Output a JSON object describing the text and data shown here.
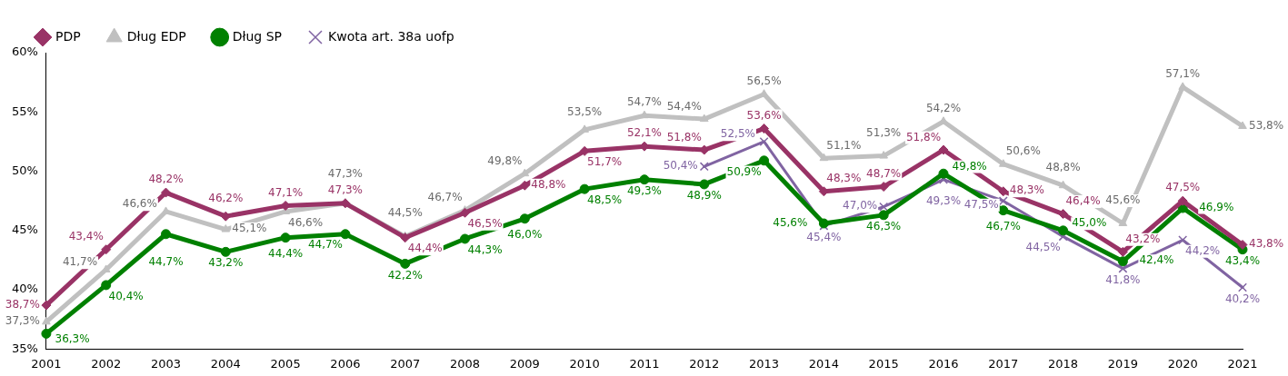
{
  "chart_data": {
    "type": "line",
    "categories": [
      "2001",
      "2002",
      "2003",
      "2004",
      "2005",
      "2006",
      "2007",
      "2008",
      "2009",
      "2010",
      "2011",
      "2012",
      "2013",
      "2014",
      "2015",
      "2016",
      "2017",
      "2018",
      "2019",
      "2020",
      "2021"
    ],
    "ylim": [
      35,
      60
    ],
    "yticks": [
      {
        "value": 35,
        "label": "35%"
      },
      {
        "value": 40,
        "label": "40%"
      },
      {
        "value": 45,
        "label": "45%"
      },
      {
        "value": 50,
        "label": "50%"
      },
      {
        "value": 55,
        "label": "55%"
      },
      {
        "value": 60,
        "label": "60%"
      }
    ],
    "legend": "top left",
    "grid": false,
    "series": [
      {
        "name": "PDP",
        "color": "#993366",
        "marker": "diamond",
        "values": [
          38.7,
          43.4,
          48.2,
          46.2,
          47.1,
          47.3,
          44.4,
          46.5,
          48.8,
          51.7,
          52.1,
          51.8,
          53.6,
          48.3,
          48.7,
          51.8,
          48.3,
          46.4,
          43.2,
          47.5,
          43.8
        ],
        "value_labels": [
          "38,7%",
          "43,4%",
          "48,2%",
          "46,2%",
          "47,1%",
          "47,3%",
          "44,4%",
          "46,5%",
          "48,8%",
          "51,7%",
          "52,1%",
          "51,8%",
          "53,6%",
          "48,3%",
          "48,7%",
          "51,8%",
          "48,3%",
          "46,4%",
          "43,2%",
          "47,5%",
          "43,8%"
        ]
      },
      {
        "name": "Dług EDP",
        "color": "#c0c0c0",
        "marker": "triangle",
        "values": [
          37.3,
          41.7,
          46.6,
          45.1,
          46.6,
          47.3,
          44.5,
          46.7,
          49.8,
          53.5,
          54.7,
          54.4,
          56.5,
          51.1,
          51.3,
          54.2,
          50.6,
          48.8,
          45.6,
          57.1,
          53.8
        ],
        "value_labels": [
          "37,3%",
          "41,7%",
          "46,6%",
          "45,1%",
          "46,6%",
          "47,3%",
          "44,5%",
          "46,7%",
          "49,8%",
          "53,5%",
          "54,7%",
          "54,4%",
          "56,5%",
          "51,1%",
          "51,3%",
          "54,2%",
          "50,6%",
          "48,8%",
          "45,6%",
          "57,1%",
          "53,8%"
        ]
      },
      {
        "name": "Dług SP",
        "color": "#008000",
        "marker": "circle",
        "values": [
          36.3,
          40.4,
          44.7,
          43.2,
          44.4,
          44.7,
          42.2,
          44.3,
          46.0,
          48.5,
          49.3,
          48.9,
          50.9,
          45.6,
          46.3,
          49.8,
          46.7,
          45.0,
          42.4,
          46.9,
          43.4
        ],
        "value_labels": [
          "36,3%",
          "40,4%",
          "44,7%",
          "43,2%",
          "44,4%",
          "44,7%",
          "42,2%",
          "44,3%",
          "46,0%",
          "48,5%",
          "49,3%",
          "48,9%",
          "50,9%",
          "45,6%",
          "46,3%",
          "49,8%",
          "46,7%",
          "45,0%",
          "42,4%",
          "46,9%",
          "43,4%"
        ]
      },
      {
        "name": "Kwota art. 38a uofp",
        "color": "#8064a2",
        "marker": "cross",
        "values": [
          null,
          null,
          null,
          null,
          null,
          null,
          null,
          null,
          null,
          null,
          null,
          50.4,
          52.5,
          45.4,
          47.0,
          49.3,
          47.5,
          44.5,
          41.8,
          44.2,
          40.2
        ],
        "value_labels": [
          null,
          null,
          null,
          null,
          null,
          null,
          null,
          null,
          null,
          null,
          null,
          "50,4%",
          "52,5%",
          "45,4%",
          "47,0%",
          "49,3%",
          "47,5%",
          "44,5%",
          "41,8%",
          "44,2%",
          "40,2%"
        ]
      }
    ]
  }
}
